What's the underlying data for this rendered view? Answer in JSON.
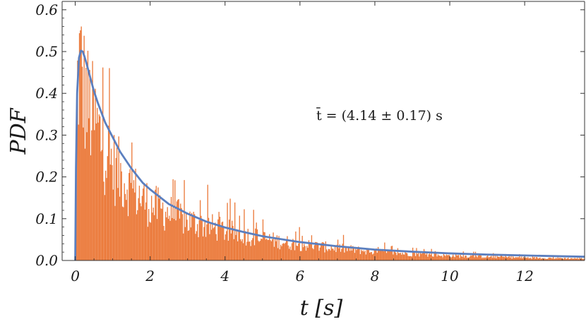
{
  "chart_data": {
    "type": "bar",
    "xlabel": "t [s]",
    "ylabel": "PDF",
    "xlim": [
      -0.35,
      13.6
    ],
    "ylim": [
      0,
      0.62
    ],
    "x_ticks": [
      0,
      2,
      4,
      6,
      8,
      10,
      12
    ],
    "x_tick_labels": [
      "0",
      "2",
      "4",
      "6",
      "8",
      "10",
      "12"
    ],
    "y_ticks": [
      0.0,
      0.1,
      0.2,
      0.3,
      0.4,
      0.5,
      0.6
    ],
    "y_tick_labels": [
      "0.0",
      "0.1",
      "0.2",
      "0.3",
      "0.4",
      "0.5",
      "0.6"
    ],
    "grid": false,
    "annotation": "t̄ = (4.14 ± 0.17) s",
    "histogram": {
      "color": "#EB7A3B",
      "bin_width": 0.025,
      "x_range": [
        0,
        13.6
      ],
      "envelope_x": [
        0.0,
        0.05,
        0.1,
        0.15,
        0.2,
        0.3,
        0.5,
        0.75,
        1.0,
        1.5,
        2.0,
        3.0,
        4.0,
        5.0,
        6.0,
        8.0,
        10.0,
        12.0,
        13.5
      ],
      "envelope_y": [
        0.05,
        0.42,
        0.49,
        0.48,
        0.45,
        0.4,
        0.35,
        0.29,
        0.24,
        0.18,
        0.14,
        0.1,
        0.075,
        0.055,
        0.04,
        0.022,
        0.012,
        0.007,
        0.005
      ],
      "spread": "bars scatter above and below the envelope; tallest bars near t≈0.2 reach ≈0.58"
    },
    "series": [
      {
        "type": "line",
        "color": "#5B7FBF",
        "x": [
          0.0,
          0.02,
          0.05,
          0.1,
          0.15,
          0.2,
          0.25,
          0.3,
          0.4,
          0.5,
          0.6,
          0.8,
          1.0,
          1.2,
          1.5,
          1.8,
          2.0,
          2.5,
          3.0,
          3.5,
          4.0,
          4.5,
          5.0,
          6.0,
          7.0,
          8.0,
          9.0,
          10.0,
          11.0,
          12.0,
          13.0,
          13.6
        ],
        "y": [
          0.0,
          0.22,
          0.4,
          0.485,
          0.502,
          0.5,
          0.487,
          0.472,
          0.438,
          0.405,
          0.378,
          0.33,
          0.295,
          0.26,
          0.22,
          0.186,
          0.17,
          0.135,
          0.112,
          0.093,
          0.079,
          0.068,
          0.058,
          0.044,
          0.034,
          0.026,
          0.021,
          0.017,
          0.014,
          0.012,
          0.01,
          0.009
        ]
      }
    ]
  }
}
